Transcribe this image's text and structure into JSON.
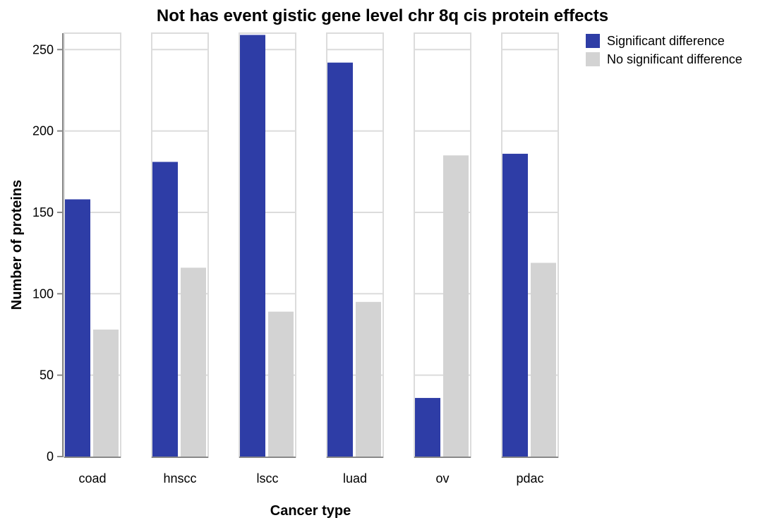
{
  "chart_data": {
    "type": "bar",
    "title": "Not has event gistic gene level chr 8q cis protein effects",
    "xlabel": "Cancer type",
    "ylabel": "Number of proteins",
    "categories": [
      "coad",
      "hnscc",
      "lscc",
      "luad",
      "ov",
      "pdac"
    ],
    "series": [
      {
        "name": "Significant difference",
        "color": "#2e3da6",
        "values": [
          158,
          181,
          259,
          242,
          36,
          186
        ]
      },
      {
        "name": "No significant difference",
        "color": "#d3d3d3",
        "values": [
          78,
          116,
          89,
          95,
          185,
          119
        ]
      }
    ],
    "yticks": [
      0,
      50,
      100,
      150,
      200,
      250
    ],
    "ylim": [
      0,
      260
    ],
    "grid": true,
    "legend_position": "top-right",
    "layout": "faceted by cancer type"
  }
}
